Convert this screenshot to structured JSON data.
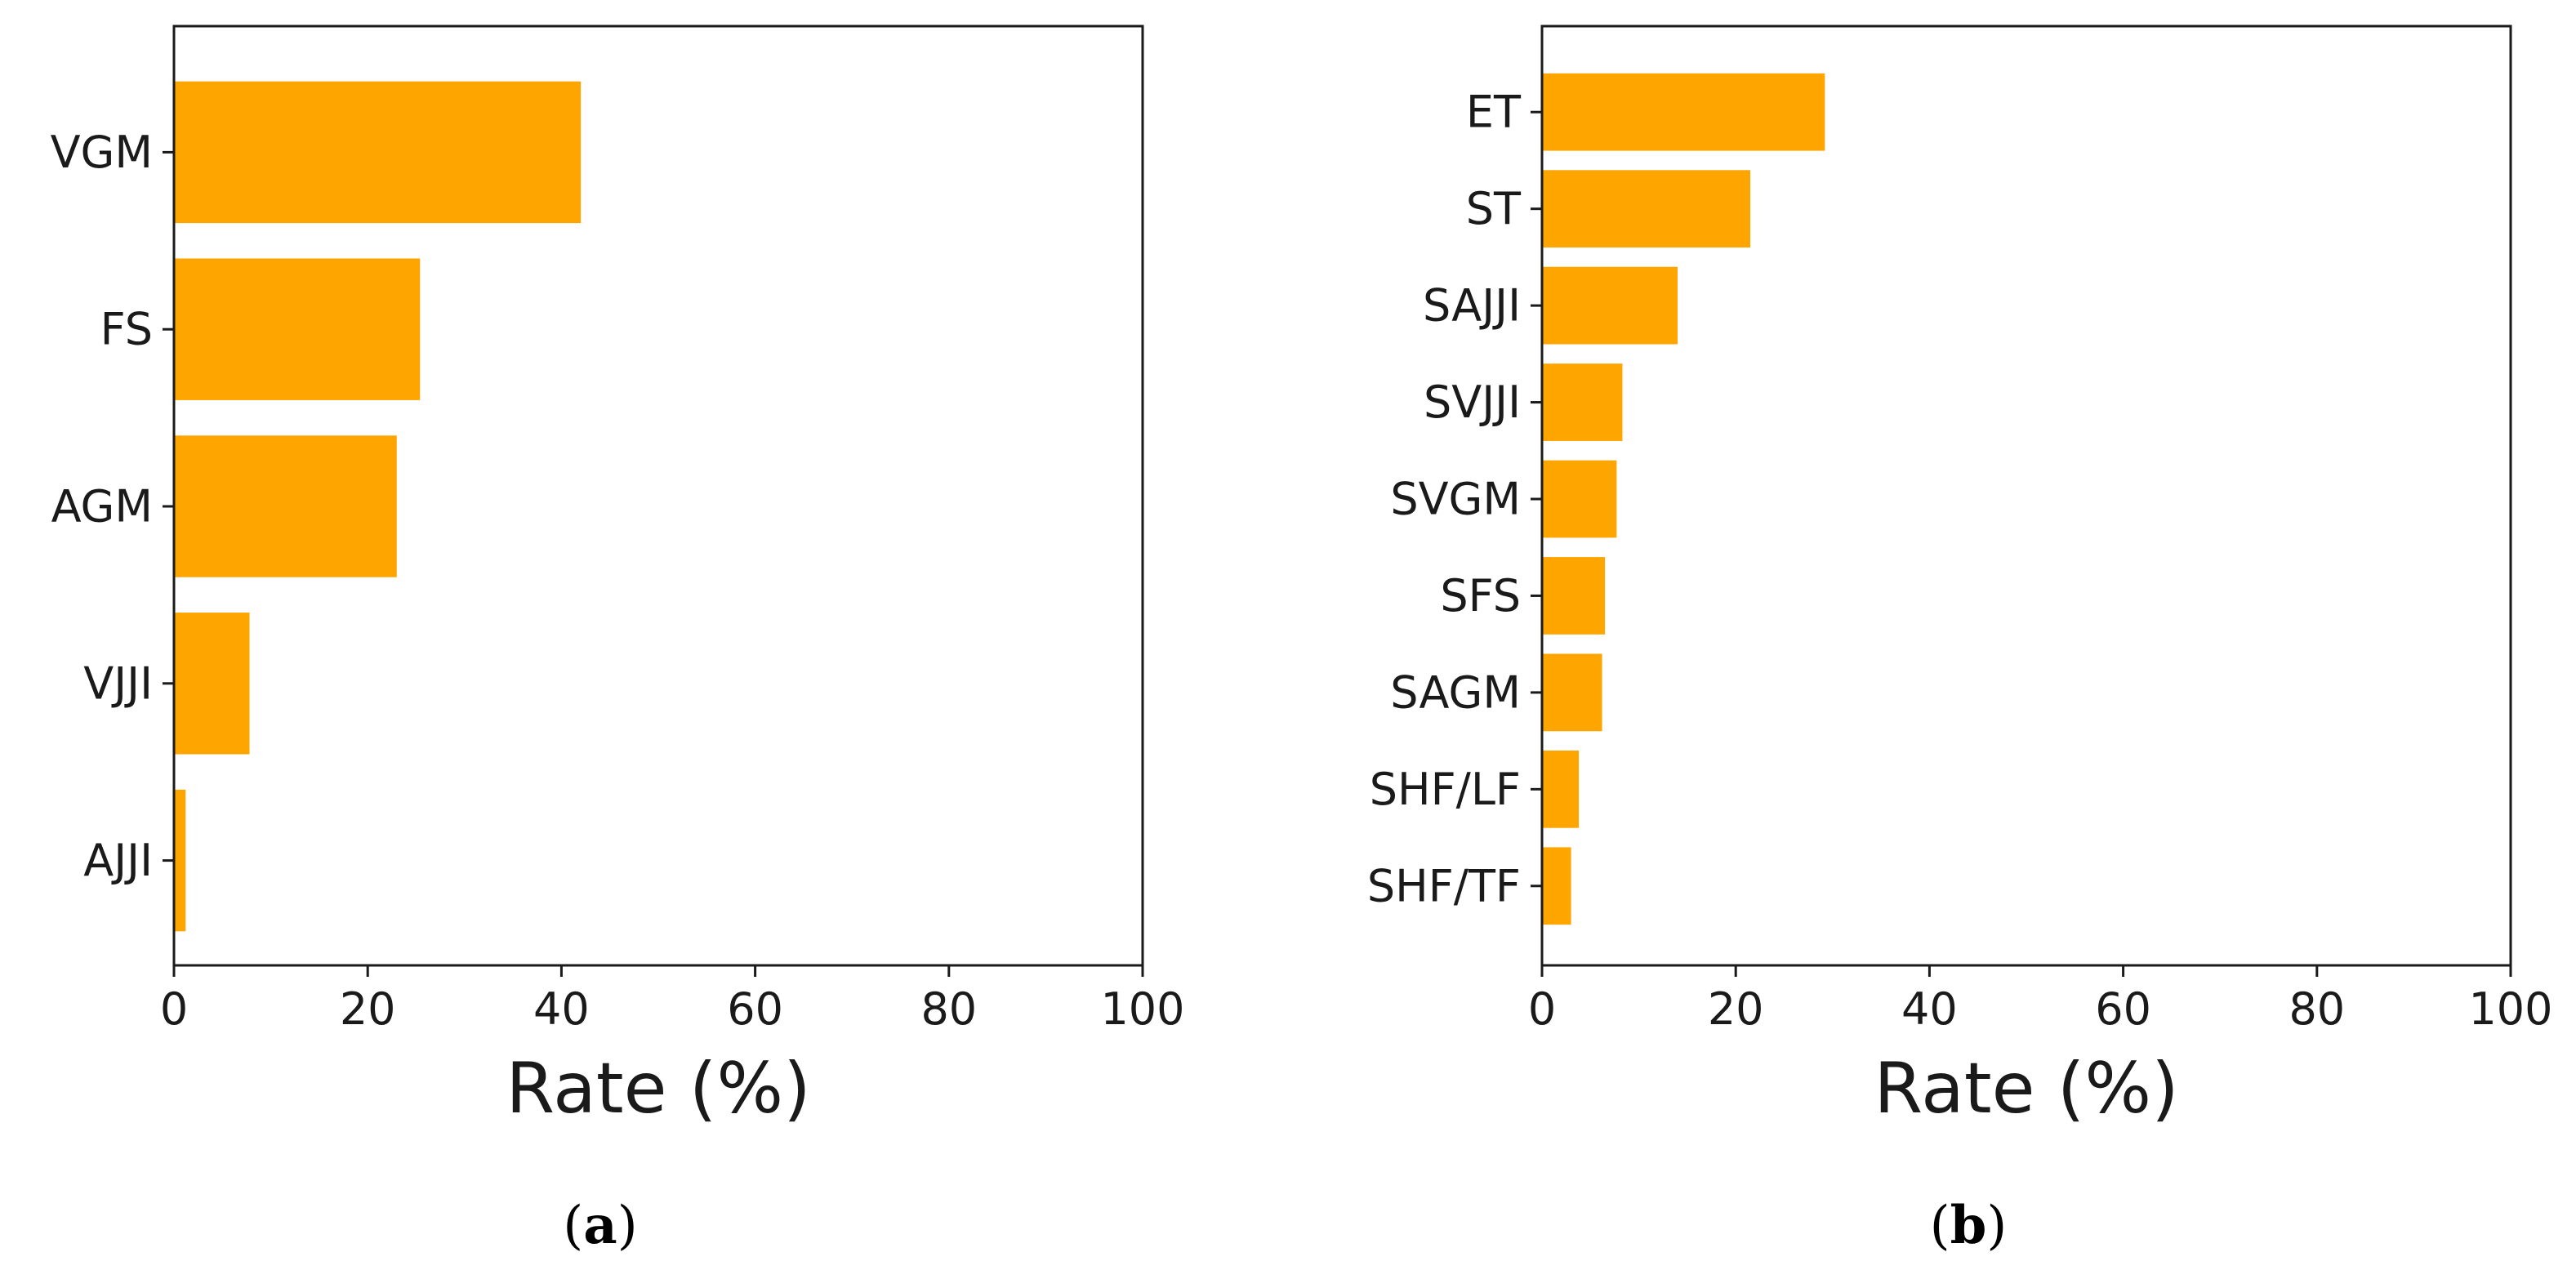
{
  "colors": {
    "bar": "#FFA500",
    "axis": "#1a1a1a"
  },
  "chart_data": [
    {
      "type": "bar",
      "orientation": "horizontal",
      "caption": {
        "open": "(",
        "letter": "a",
        "close": ")"
      },
      "categories": [
        "VGM",
        "FS",
        "AGM",
        "VJJI",
        "AJJI"
      ],
      "values": [
        42,
        25.4,
        23,
        7.8,
        1.2
      ],
      "xlabel": "Rate (%)",
      "xlim": [
        0,
        100
      ],
      "xticks": [
        "0",
        "20",
        "40",
        "60",
        "80",
        "100"
      ],
      "grid": false,
      "legend": false
    },
    {
      "type": "bar",
      "orientation": "horizontal",
      "caption": {
        "open": "(",
        "letter": "b",
        "close": ")"
      },
      "categories": [
        "ET",
        "ST",
        "SAJJI",
        "SVJJI",
        "SVGM",
        "SFS",
        "SAGM",
        "SHF/LF",
        "SHF/TF"
      ],
      "values": [
        29.2,
        21.5,
        14,
        8.3,
        7.7,
        6.5,
        6.2,
        3.8,
        3
      ],
      "xlabel": "Rate (%)",
      "xlim": [
        0,
        100
      ],
      "xticks": [
        "0",
        "20",
        "40",
        "60",
        "80",
        "100"
      ],
      "grid": false,
      "legend": false
    }
  ]
}
